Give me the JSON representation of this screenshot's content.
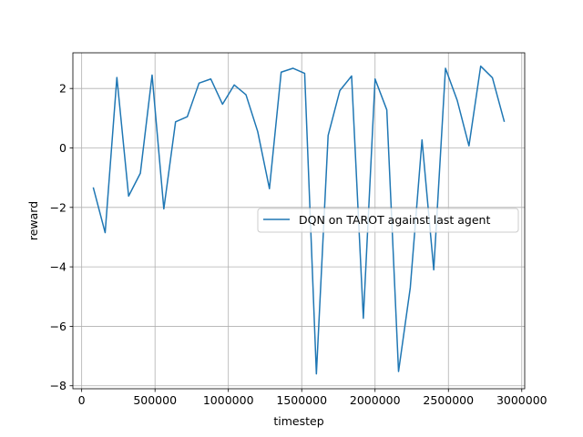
{
  "chart_data": {
    "type": "line",
    "xlabel": "timestep",
    "ylabel": "reward",
    "xlim": [
      -60000,
      3020000
    ],
    "ylim": [
      -8.1,
      3.2
    ],
    "xticks": [
      0,
      500000,
      1000000,
      1500000,
      2000000,
      2500000,
      3000000
    ],
    "xtick_labels": [
      "0",
      "500000",
      "1000000",
      "1500000",
      "2000000",
      "2500000",
      "3000000"
    ],
    "yticks": [
      -8,
      -6,
      -4,
      -2,
      0,
      2
    ],
    "ytick_labels": [
      "−8",
      "−6",
      "−4",
      "−2",
      "0",
      "2"
    ],
    "grid": true,
    "legend_position": "center-right",
    "series": [
      {
        "name": "DQN on TAROT against last agent",
        "color": "#1f77b4",
        "x": [
          80000,
          160000,
          240000,
          320000,
          400000,
          480000,
          560000,
          640000,
          720000,
          800000,
          880000,
          960000,
          1040000,
          1120000,
          1200000,
          1280000,
          1360000,
          1440000,
          1520000,
          1600000,
          1680000,
          1760000,
          1840000,
          1920000,
          2000000,
          2080000,
          2160000,
          2240000,
          2320000,
          2400000,
          2480000,
          2560000,
          2640000,
          2720000,
          2800000,
          2880000
        ],
        "y": [
          -1.35,
          -2.85,
          2.37,
          -1.62,
          -0.85,
          2.45,
          -2.05,
          0.88,
          1.05,
          2.18,
          2.32,
          1.47,
          2.12,
          1.79,
          0.55,
          -1.37,
          2.55,
          2.68,
          2.51,
          -7.6,
          0.42,
          1.93,
          2.42,
          -5.73,
          2.32,
          1.28,
          -7.52,
          -4.7,
          0.27,
          -4.1,
          2.68,
          1.6,
          0.07,
          2.75,
          2.36,
          0.9
        ]
      }
    ]
  }
}
